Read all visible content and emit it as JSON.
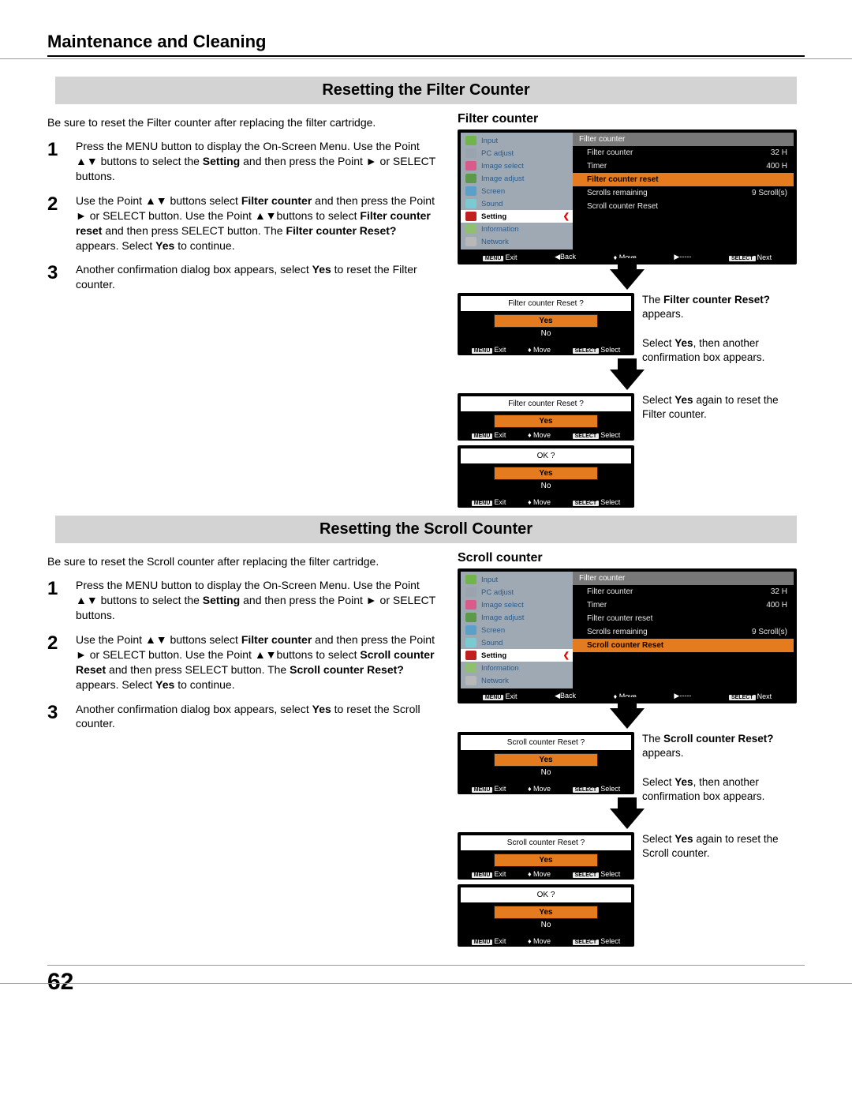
{
  "page": {
    "title": "Maintenance and Cleaning",
    "number": "62"
  },
  "sections": [
    {
      "band": "Resetting the Filter Counter",
      "intro": "Be sure to reset the Filter counter after replacing the filter cartridge.",
      "steps": [
        "Press the MENU button to display the On-Screen Menu. Use the Point ▲▼ buttons to select the <b>Setting</b> and then press the Point ► or SELECT buttons.",
        "Use the Point ▲▼ buttons select <b>Filter counter</b> and then press the Point ► or SELECT button. Use the Point ▲▼buttons to select <b>Filter counter reset</b> and then press SELECT button. The <b>Filter counter Reset?</b> appears. Select <b>Yes</b> to continue.",
        "Another confirmation dialog box appears, select <b>Yes</b> to reset the Filter counter."
      ],
      "sub_title": "Filter counter",
      "osd_highlight_index": 2,
      "dlg1_title": "Filter counter Reset ?",
      "dlg2_title": "Filter counter Reset ?",
      "cap1a": "The <b>Filter counter Reset?</b> appears.",
      "cap1b": "Select <b>Yes</b>, then another confirmation box appears.",
      "cap2": "Select <b>Yes</b> again to reset the Filter counter."
    },
    {
      "band": "Resetting the Scroll Counter",
      "intro": "Be sure to reset the Scroll counter after replacing the filter cartridge.",
      "steps": [
        "Press the MENU button to display the On-Screen Menu. Use the Point ▲▼ buttons to select the <b>Setting</b> and then press the Point ► or SELECT  buttons.",
        "Use the Point ▲▼ buttons select <b>Filter counter</b> and then press the Point ► or SELECT button. Use the Point ▲▼buttons to select <b>Scroll counter Reset</b> and then press SELECT button. The <b>Scroll counter Reset?</b> appears. Select <b>Yes</b> to continue.",
        "Another confirmation dialog box appears, select <b>Yes</b> to reset the Scroll counter."
      ],
      "sub_title": "Scroll counter",
      "osd_highlight_index": 4,
      "dlg1_title": "Scroll counter Reset ?",
      "dlg2_title": "Scroll counter Reset ?",
      "cap1a": "The <b>Scroll counter Reset?</b> appears.",
      "cap1b": "Select <b>Yes</b>, then another confirmation box appears.",
      "cap2": "Select <b>Yes</b> again to reset the Scroll counter."
    }
  ],
  "osd": {
    "menu_items": [
      {
        "label": "Input",
        "color": "#6fb54a"
      },
      {
        "label": "PC adjust",
        "color": "#9aa4ae"
      },
      {
        "label": "Image select",
        "color": "#d85b8a"
      },
      {
        "label": "Image adjust",
        "color": "#5c9a4a"
      },
      {
        "label": "Screen",
        "color": "#5aa0c8"
      },
      {
        "label": "Sound",
        "color": "#7ccad1"
      },
      {
        "label": "Setting",
        "color": "#c02020"
      },
      {
        "label": "Information",
        "color": "#8fbf6f"
      },
      {
        "label": "Network",
        "color": "#b8b8b8"
      }
    ],
    "selected_index": 6,
    "panel_header": "Filter counter",
    "panel_lines": [
      {
        "label": "Filter counter",
        "value": "32 H"
      },
      {
        "label": "Timer",
        "value": "400 H"
      },
      {
        "label": "Filter counter reset",
        "value": ""
      },
      {
        "label": "Scrolls remaining",
        "value": "9 Scroll(s)"
      },
      {
        "label": "Scroll counter Reset",
        "value": ""
      }
    ],
    "footer_main": [
      {
        "key": "MENU",
        "label": "Exit"
      },
      {
        "key": "",
        "label": "◀Back"
      },
      {
        "key": "",
        "label": "♦ Move"
      },
      {
        "key": "",
        "label": "▶-----"
      },
      {
        "key": "SELECT",
        "label": "Next"
      }
    ],
    "footer_dlg": [
      {
        "key": "MENU",
        "label": "Exit"
      },
      {
        "key": "",
        "label": "♦ Move"
      },
      {
        "key": "SELECT",
        "label": "Select"
      }
    ],
    "yes": "Yes",
    "no": "No",
    "ok": "OK ?"
  }
}
